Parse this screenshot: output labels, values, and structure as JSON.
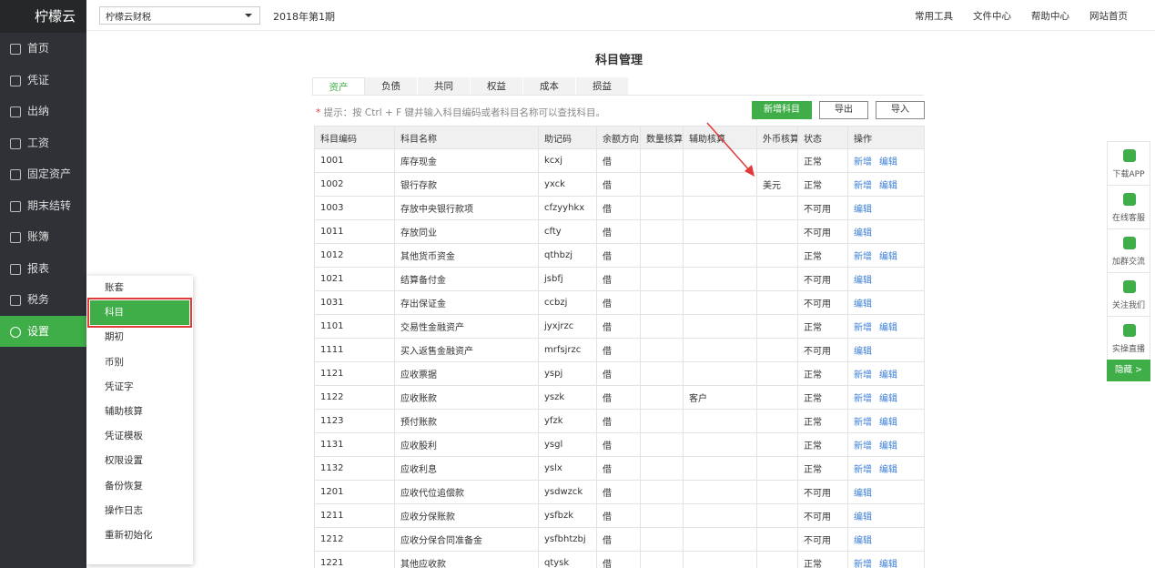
{
  "brand": "柠檬云",
  "topbar": {
    "company": "柠檬云财税",
    "period": "2018年第1期",
    "nav": [
      "常用工具",
      "文件中心",
      "帮助中心",
      "网站首页"
    ]
  },
  "sidebar": [
    "首页",
    "凭证",
    "出纳",
    "工资",
    "固定资产",
    "期末结转",
    "账簿",
    "报表",
    "税务",
    "设置"
  ],
  "submenu": [
    "账套",
    "科目",
    "期初",
    "币别",
    "凭证字",
    "辅助核算",
    "凭证模板",
    "权限设置",
    "备份恢复",
    "操作日志",
    "重新初始化"
  ],
  "page": {
    "title": "科目管理",
    "tabs": [
      "资产",
      "负债",
      "共同",
      "权益",
      "成本",
      "损益"
    ],
    "hint_mark": "*",
    "hint": "提示：按 Ctrl + F 键并输入科目编码或者科目名称可以查找科目。",
    "buttons": [
      "新增科目",
      "导出",
      "导入"
    ]
  },
  "table": {
    "headers": [
      "科目编码",
      "科目名称",
      "助记码",
      "余额方向",
      "数量核算",
      "辅助核算",
      "外币核算",
      "状态",
      "操作"
    ],
    "rows": [
      {
        "code": "1001",
        "name": "库存现金",
        "mnemonic": "kcxj",
        "direction": "借",
        "status": "正常",
        "actions": [
          "新增",
          "编辑"
        ]
      },
      {
        "code": "1002",
        "name": "银行存款",
        "mnemonic": "yxck",
        "direction": "借",
        "currency": "美元",
        "status": "正常",
        "actions": [
          "新增",
          "编辑"
        ]
      },
      {
        "code": "1003",
        "name": "存放中央银行款项",
        "mnemonic": "cfzyyhkx",
        "direction": "借",
        "status": "不可用",
        "actions": [
          "编辑"
        ]
      },
      {
        "code": "1011",
        "name": "存放同业",
        "mnemonic": "cfty",
        "direction": "借",
        "status": "不可用",
        "actions": [
          "编辑"
        ]
      },
      {
        "code": "1012",
        "name": "其他货币资金",
        "mnemonic": "qthbzj",
        "direction": "借",
        "status": "正常",
        "actions": [
          "新增",
          "编辑"
        ]
      },
      {
        "code": "1021",
        "name": "结算备付金",
        "mnemonic": "jsbfj",
        "direction": "借",
        "status": "不可用",
        "actions": [
          "编辑"
        ]
      },
      {
        "code": "1031",
        "name": "存出保证金",
        "mnemonic": "ccbzj",
        "direction": "借",
        "status": "不可用",
        "actions": [
          "编辑"
        ]
      },
      {
        "code": "1101",
        "name": "交易性金融资产",
        "mnemonic": "jyxjrzc",
        "direction": "借",
        "status": "正常",
        "actions": [
          "新增",
          "编辑"
        ]
      },
      {
        "code": "1111",
        "name": "买入返售金融资产",
        "mnemonic": "mrfsjrzc",
        "direction": "借",
        "status": "不可用",
        "actions": [
          "编辑"
        ]
      },
      {
        "code": "1121",
        "name": "应收票据",
        "mnemonic": "yspj",
        "direction": "借",
        "status": "正常",
        "actions": [
          "新增",
          "编辑"
        ]
      },
      {
        "code": "1122",
        "name": "应收账款",
        "mnemonic": "yszk",
        "direction": "借",
        "auxiliary": "客户",
        "status": "正常",
        "actions": [
          "新增",
          "编辑"
        ]
      },
      {
        "code": "1123",
        "name": "预付账款",
        "mnemonic": "yfzk",
        "direction": "借",
        "status": "正常",
        "actions": [
          "新增",
          "编辑"
        ]
      },
      {
        "code": "1131",
        "name": "应收股利",
        "mnemonic": "ysgl",
        "direction": "借",
        "status": "正常",
        "actions": [
          "新增",
          "编辑"
        ]
      },
      {
        "code": "1132",
        "name": "应收利息",
        "mnemonic": "yslx",
        "direction": "借",
        "status": "正常",
        "actions": [
          "新增",
          "编辑"
        ]
      },
      {
        "code": "1201",
        "name": "应收代位追偿款",
        "mnemonic": "ysdwzck",
        "direction": "借",
        "status": "不可用",
        "actions": [
          "编辑"
        ]
      },
      {
        "code": "1211",
        "name": "应收分保账款",
        "mnemonic": "ysfbzk",
        "direction": "借",
        "status": "不可用",
        "actions": [
          "编辑"
        ]
      },
      {
        "code": "1212",
        "name": "应收分保合同准备金",
        "mnemonic": "ysfbhtzbj",
        "direction": "借",
        "status": "不可用",
        "actions": [
          "编辑"
        ]
      },
      {
        "code": "1221",
        "name": "其他应收款",
        "mnemonic": "qtysk",
        "direction": "借",
        "status": "正常",
        "actions": [
          "新增",
          "编辑"
        ]
      }
    ]
  },
  "float_panel": [
    "下载APP",
    "在线客服",
    "加群交流",
    "关注我们",
    "实操直播"
  ],
  "float_hide": "隐藏 >"
}
